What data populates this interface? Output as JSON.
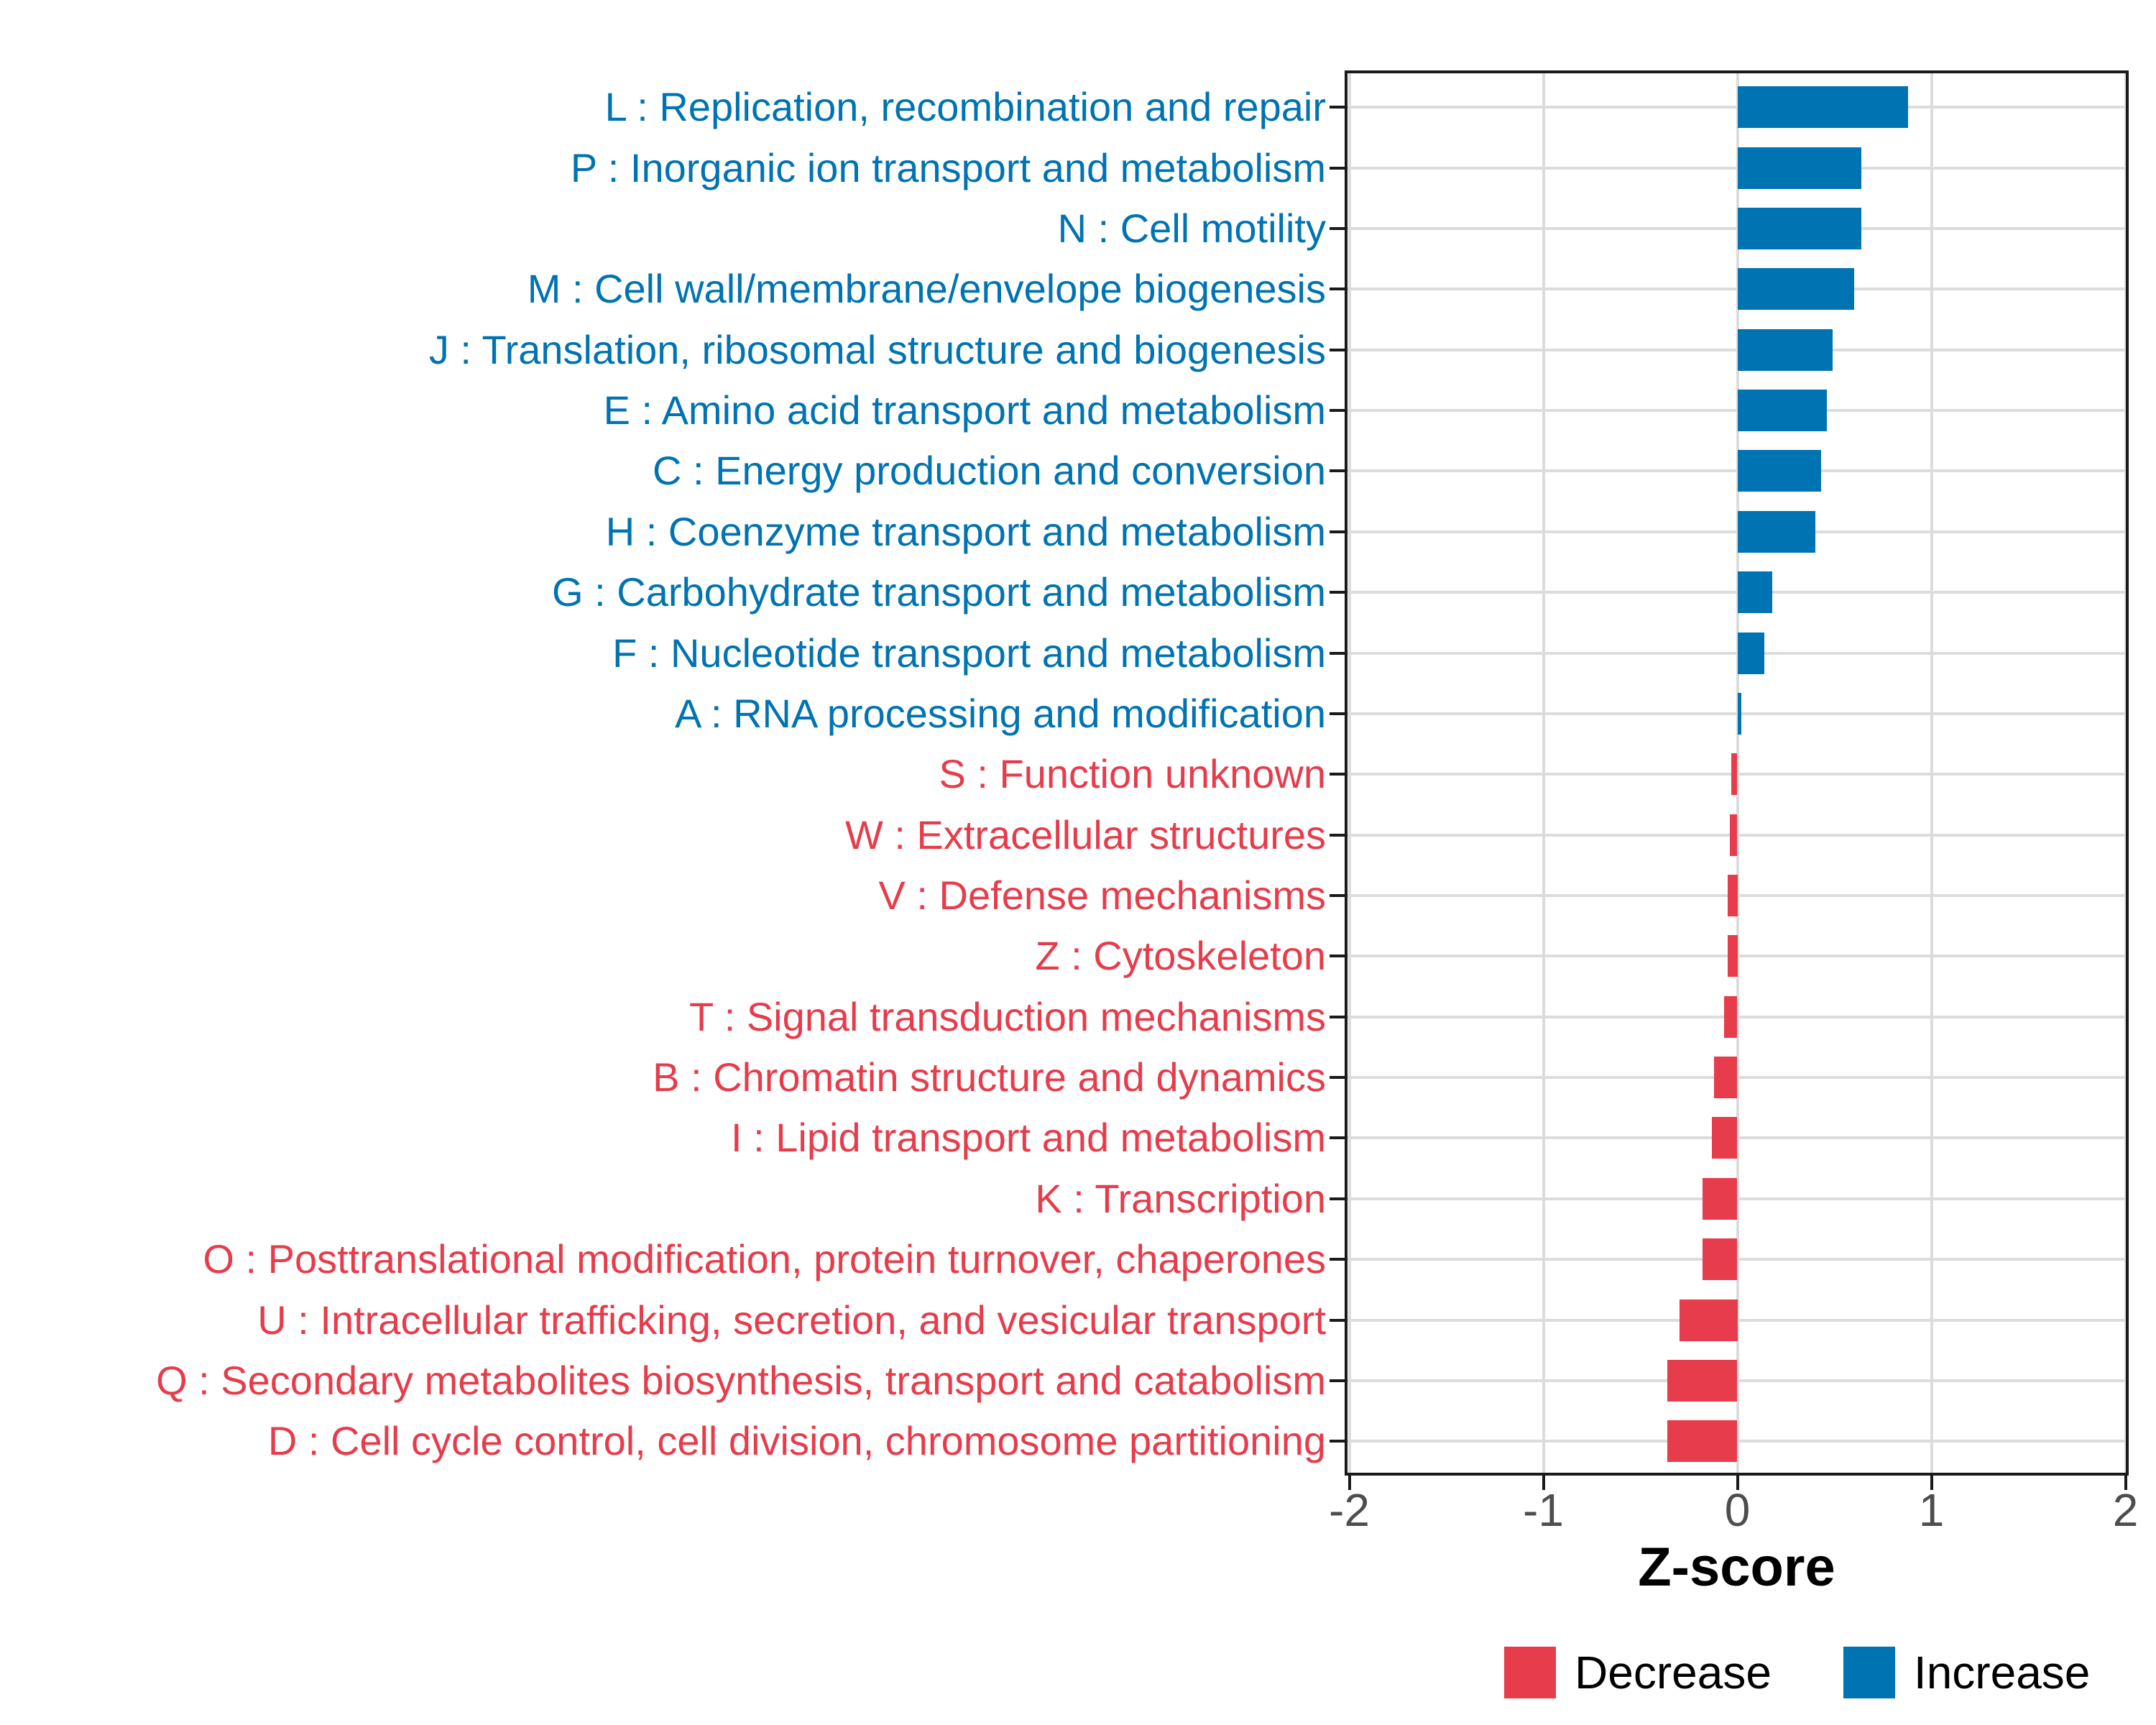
{
  "chart_data": {
    "type": "bar",
    "orientation": "horizontal",
    "title": "",
    "xlabel": "Z-score",
    "ylabel": "",
    "xlim": [
      -2.02,
      2.02
    ],
    "xticks": [
      -2,
      -1,
      0,
      1,
      2
    ],
    "grid": true,
    "legend_position": "bottom-right",
    "groups": [
      {
        "name": "Decrease",
        "color": "#e63c4b"
      },
      {
        "name": "Increase",
        "color": "#0073b2"
      }
    ],
    "bars": [
      {
        "label": "L : Replication, recombination and repair",
        "value": 0.88,
        "group": "Increase"
      },
      {
        "label": "P : Inorganic ion transport and metabolism",
        "value": 0.64,
        "group": "Increase"
      },
      {
        "label": "N : Cell motility",
        "value": 0.64,
        "group": "Increase"
      },
      {
        "label": "M : Cell wall/membrane/envelope biogenesis",
        "value": 0.6,
        "group": "Increase"
      },
      {
        "label": "J : Translation, ribosomal structure and biogenesis",
        "value": 0.49,
        "group": "Increase"
      },
      {
        "label": "E : Amino acid transport and metabolism",
        "value": 0.46,
        "group": "Increase"
      },
      {
        "label": "C : Energy production and conversion",
        "value": 0.43,
        "group": "Increase"
      },
      {
        "label": "H : Coenzyme transport and metabolism",
        "value": 0.4,
        "group": "Increase"
      },
      {
        "label": "G : Carbohydrate transport and metabolism",
        "value": 0.18,
        "group": "Increase"
      },
      {
        "label": "F : Nucleotide transport and metabolism",
        "value": 0.14,
        "group": "Increase"
      },
      {
        "label": "A : RNA processing and modification",
        "value": 0.02,
        "group": "Increase"
      },
      {
        "label": "S : Function unknown",
        "value": -0.03,
        "group": "Decrease"
      },
      {
        "label": "W : Extracellular structures",
        "value": -0.04,
        "group": "Decrease"
      },
      {
        "label": "V : Defense mechanisms",
        "value": -0.05,
        "group": "Decrease"
      },
      {
        "label": "Z : Cytoskeleton",
        "value": -0.05,
        "group": "Decrease"
      },
      {
        "label": "T : Signal transduction mechanisms",
        "value": -0.07,
        "group": "Decrease"
      },
      {
        "label": "B : Chromatin structure and dynamics",
        "value": -0.12,
        "group": "Decrease"
      },
      {
        "label": "I : Lipid transport and metabolism",
        "value": -0.13,
        "group": "Decrease"
      },
      {
        "label": "K : Transcription",
        "value": -0.18,
        "group": "Decrease"
      },
      {
        "label": "O : Posttranslational modification, protein turnover, chaperones",
        "value": -0.18,
        "group": "Decrease"
      },
      {
        "label": "U : Intracellular trafficking, secretion, and vesicular transport",
        "value": -0.3,
        "group": "Decrease"
      },
      {
        "label": "Q : Secondary metabolites biosynthesis, transport and catabolism",
        "value": -0.36,
        "group": "Decrease"
      },
      {
        "label": "D : Cell cycle control, cell division, chromosome partitioning",
        "value": -0.36,
        "group": "Decrease"
      }
    ]
  },
  "colors": {
    "increase": "#0073b2",
    "decrease": "#e63c4b",
    "grid": "#dcdcdc",
    "axis": "#1a1a1a",
    "tick_label": "#4d4d4d",
    "background": "#ffffff"
  },
  "legend": {
    "decrease_label": "Decrease",
    "increase_label": "Increase"
  }
}
